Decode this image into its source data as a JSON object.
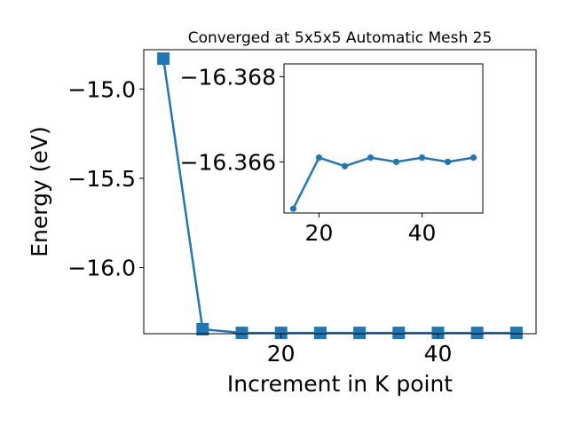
{
  "chart_data": [
    {
      "type": "line",
      "title": "Converged at 5x5x5 Automatic Mesh 25",
      "xlabel": "Increment in K point",
      "ylabel": "Energy (eV)",
      "xlim": [
        2.5,
        52.5
      ],
      "ylim": [
        -16.37,
        -14.78
      ],
      "xticks": [
        20,
        40
      ],
      "yticks": [
        -15.0,
        -15.5,
        -16.0
      ],
      "xtick_labels": [
        "20",
        "40"
      ],
      "ytick_labels": [
        "−15.0",
        "−15.5",
        "−16.0"
      ],
      "grid": false,
      "marker": "square",
      "series": [
        {
          "color": "#1f77b4",
          "x": [
            5,
            10,
            15,
            20,
            25,
            30,
            35,
            40,
            45,
            50
          ],
          "y": [
            -14.83,
            -16.345,
            -16.3655,
            -16.3655,
            -16.3655,
            -16.3655,
            -16.3655,
            -16.3655,
            -16.3655,
            -16.3655
          ]
        }
      ]
    },
    {
      "type": "line",
      "title": "",
      "xlabel": "",
      "ylabel": "",
      "xlim": [
        13.2,
        51.8
      ],
      "ylim": [
        -16.3648,
        -16.3683
      ],
      "xticks": [
        20,
        40
      ],
      "yticks": [
        -16.368,
        -16.366
      ],
      "xtick_labels": [
        "20",
        "40"
      ],
      "ytick_labels": [
        "−16.368",
        "−16.366"
      ],
      "grid": false,
      "marker": "circle",
      "series": [
        {
          "color": "#1f77b4",
          "x": [
            15,
            20,
            25,
            30,
            35,
            40,
            45,
            50
          ],
          "y": [
            -16.3649,
            -16.3661,
            -16.3659,
            -16.3661,
            -16.366,
            -16.3661,
            -16.366,
            -16.3661
          ]
        }
      ]
    }
  ]
}
